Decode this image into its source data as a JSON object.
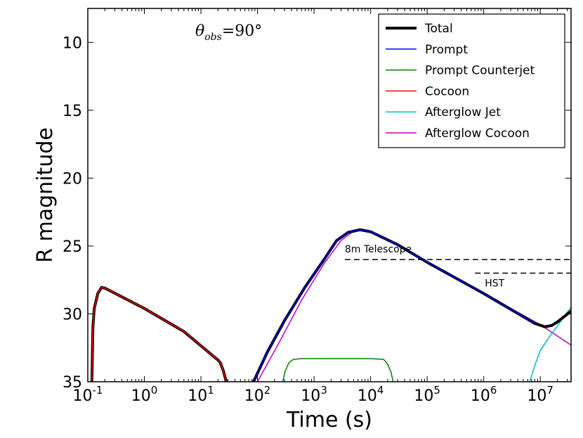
{
  "chart_data": {
    "type": "line",
    "xlabel": "Time (s)",
    "ylabel": "R magnitude",
    "xscale": "log",
    "xlim": [
      0.1,
      35000000
    ],
    "ylim": [
      35,
      7.5
    ],
    "y_inverted": true,
    "annotation_theta": {
      "symbol": "θ",
      "sub": "obs",
      "value": "=90°"
    },
    "xticks": [
      {
        "value": 0.1,
        "base": "10",
        "exp": "-1"
      },
      {
        "value": 1,
        "base": "10",
        "exp": "0"
      },
      {
        "value": 10,
        "base": "10",
        "exp": "1"
      },
      {
        "value": 100,
        "base": "10",
        "exp": "2"
      },
      {
        "value": 1000,
        "base": "10",
        "exp": "3"
      },
      {
        "value": 10000,
        "base": "10",
        "exp": "4"
      },
      {
        "value": 100000,
        "base": "10",
        "exp": "5"
      },
      {
        "value": 1000000,
        "base": "10",
        "exp": "6"
      },
      {
        "value": 10000000,
        "base": "10",
        "exp": "7"
      }
    ],
    "yticks": [
      {
        "value": 10,
        "label": "10"
      },
      {
        "value": 15,
        "label": "15"
      },
      {
        "value": 20,
        "label": "20"
      },
      {
        "value": 25,
        "label": "25"
      },
      {
        "value": 30,
        "label": "30"
      },
      {
        "value": 35,
        "label": "35"
      }
    ],
    "legend": {
      "placement": "top-right",
      "entries": [
        {
          "label": "Total",
          "color": "#000000",
          "width": 4
        },
        {
          "label": "Prompt",
          "color": "#0000ff",
          "width": 1.5
        },
        {
          "label": "Prompt Counterjet",
          "color": "#008000",
          "width": 1.5
        },
        {
          "label": "Cocoon",
          "color": "#ff0000",
          "width": 1.5
        },
        {
          "label": "Afterglow Jet",
          "color": "#00bfbf",
          "width": 1.5
        },
        {
          "label": "Afterglow Cocoon",
          "color": "#bf00bf",
          "width": 1.5
        }
      ]
    },
    "thresholds": [
      {
        "label": "8m Telescope",
        "y": 26.0,
        "x_start": 3500,
        "x_end": 35000000
      },
      {
        "label": "HST",
        "y": 27.0,
        "x_start": 700000,
        "x_end": 35000000
      }
    ],
    "series": [
      {
        "name": "Afterglow Cocoon",
        "color": "#bf00bf",
        "width": 1.5,
        "points": [
          [
            100,
            35
          ],
          [
            250,
            32
          ],
          [
            600,
            29
          ],
          [
            1500,
            26.3
          ],
          [
            3000,
            24.6
          ],
          [
            5000,
            23.9
          ],
          [
            7000,
            23.8
          ],
          [
            10000,
            23.95
          ],
          [
            30000,
            24.9
          ],
          [
            100000,
            26.2
          ],
          [
            1000000,
            28.5
          ],
          [
            10000000,
            30.8
          ],
          [
            35000000,
            32.3
          ]
        ]
      },
      {
        "name": "Afterglow Jet",
        "color": "#00bfbf",
        "width": 1.5,
        "points": [
          [
            6500000,
            35
          ],
          [
            8000000,
            33.8
          ],
          [
            10000000,
            32.7
          ],
          [
            15000000,
            31.6
          ],
          [
            20000000,
            30.9
          ],
          [
            35000000,
            29.5
          ]
        ]
      },
      {
        "name": "Prompt Counterjet",
        "color": "#008000",
        "width": 1.5,
        "points": [
          [
            280,
            35
          ],
          [
            310,
            34.2
          ],
          [
            360,
            33.6
          ],
          [
            430,
            33.35
          ],
          [
            600,
            33.3
          ],
          [
            10000,
            33.3
          ],
          [
            17000,
            33.35
          ],
          [
            20000,
            33.7
          ],
          [
            23000,
            34.3
          ],
          [
            25000,
            35
          ]
        ]
      },
      {
        "name": "Total",
        "color": "#000000",
        "width": 4,
        "segments": [
          [
            [
              0.118,
              35
            ],
            [
              0.123,
              31
            ],
            [
              0.13,
              29.6
            ],
            [
              0.15,
              28.5
            ],
            [
              0.175,
              28.05
            ],
            [
              0.2,
              28.1
            ],
            [
              1,
              29.6
            ],
            [
              5,
              31.3
            ],
            [
              20,
              33.4
            ],
            [
              22,
              33.6
            ],
            [
              25,
              34.2
            ],
            [
              28,
              35
            ]
          ],
          [
            [
              85,
              35
            ],
            [
              150,
              32.8
            ],
            [
              300,
              30.5
            ],
            [
              700,
              28.0
            ],
            [
              1500,
              26.0
            ],
            [
              2500,
              24.6
            ],
            [
              4000,
              24.0
            ],
            [
              6500,
              23.8
            ],
            [
              10000,
              23.95
            ],
            [
              30000,
              24.9
            ],
            [
              100000,
              26.2
            ],
            [
              1000000,
              28.5
            ],
            [
              8000000,
              30.7
            ],
            [
              12000000,
              30.95
            ],
            [
              16000000,
              30.85
            ],
            [
              20000000,
              30.6
            ],
            [
              35000000,
              29.8
            ]
          ]
        ]
      },
      {
        "name": "Prompt",
        "color": "#0000ff",
        "width": 1.5,
        "segments": [
          [
            [
              85,
              35
            ],
            [
              150,
              32.8
            ],
            [
              300,
              30.5
            ],
            [
              700,
              28.0
            ],
            [
              1500,
              26.0
            ],
            [
              2500,
              24.6
            ],
            [
              4000,
              24.0
            ],
            [
              6500,
              23.8
            ],
            [
              10000,
              23.95
            ],
            [
              30000,
              24.9
            ],
            [
              100000,
              26.2
            ],
            [
              1000000,
              28.5
            ],
            [
              8000000,
              30.7
            ]
          ]
        ]
      },
      {
        "name": "Cocoon",
        "color": "#ff0000",
        "width": 1.5,
        "segments": [
          [
            [
              0.118,
              35
            ],
            [
              0.123,
              31
            ],
            [
              0.13,
              29.6
            ],
            [
              0.15,
              28.5
            ],
            [
              0.175,
              28.05
            ],
            [
              0.2,
              28.1
            ],
            [
              1,
              29.6
            ],
            [
              5,
              31.3
            ],
            [
              20,
              33.4
            ],
            [
              22,
              33.6
            ],
            [
              25,
              34.2
            ],
            [
              28,
              35
            ]
          ]
        ]
      }
    ]
  }
}
